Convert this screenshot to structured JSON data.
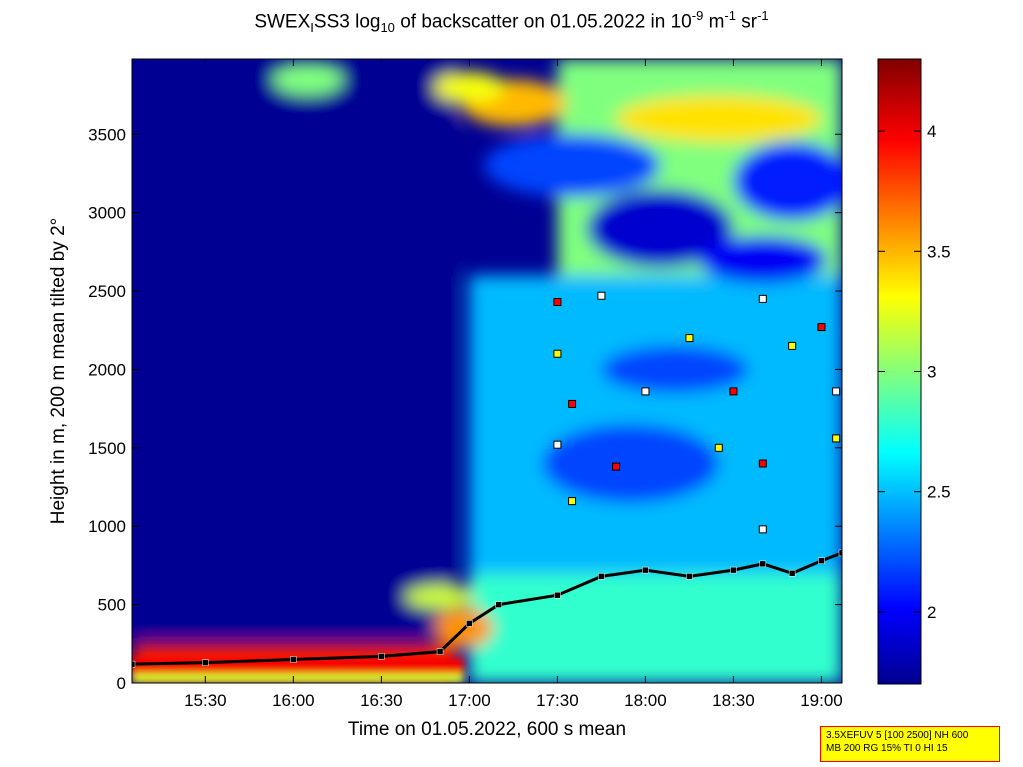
{
  "title_parts": {
    "pre": "SWEX",
    "sub_i": "I",
    "mid": "SS3 log",
    "sub_10": "10",
    "mid2": " of backscatter on 01.05.2022 in 10",
    "sup_9": "-9",
    "unit_m": " m",
    "sup_m": "-1",
    "unit_sr": " sr",
    "sup_sr": "-1"
  },
  "chart_data": {
    "type": "heatmap",
    "xlabel": "Time on 01.05.2022, 600 s mean",
    "ylabel": "Height in m, 200 m mean tilted by 2°",
    "x_range": [
      "15:05",
      "19:07"
    ],
    "x_ticks": [
      "15:30",
      "16:00",
      "16:30",
      "17:00",
      "17:30",
      "18:00",
      "18:30",
      "19:00"
    ],
    "y_range": [
      0,
      3980
    ],
    "y_ticks": [
      0,
      500,
      1000,
      1500,
      2000,
      2500,
      3000,
      3500
    ],
    "colorbar": {
      "range": [
        1.7,
        4.3
      ],
      "ticks": [
        "2",
        "2.5",
        "3",
        "3.5",
        "4"
      ],
      "colormap": "jet"
    },
    "regions": [
      {
        "description": "low backscatter, clear air aloft",
        "t_start": "15:05",
        "t_end": "16:55",
        "h_from": 300,
        "h_to": 3980,
        "value": 1.75
      },
      {
        "description": "surface aerosol layer",
        "t_start": "15:05",
        "t_end": "16:55",
        "h_from": 0,
        "h_to": 250,
        "value": 3.9
      },
      {
        "description": "boundary layer after 17:00",
        "t_start": "17:00",
        "t_end": "19:07",
        "h_from": 0,
        "h_to": 700,
        "value": 2.8
      },
      {
        "description": "residual/aloft aerosol",
        "t_start": "17:00",
        "t_end": "19:07",
        "h_from": 700,
        "h_to": 2600,
        "value": 2.5
      },
      {
        "description": "elevated clouds",
        "t_start": "17:30",
        "t_end": "19:07",
        "h_from": 2600,
        "h_to": 3980,
        "value": 3.0
      }
    ],
    "mixing_layer_height": [
      {
        "t": "15:05",
        "h": 120
      },
      {
        "t": "15:30",
        "h": 130
      },
      {
        "t": "16:00",
        "h": 150
      },
      {
        "t": "16:30",
        "h": 170
      },
      {
        "t": "16:50",
        "h": 200
      },
      {
        "t": "17:00",
        "h": 380
      },
      {
        "t": "17:10",
        "h": 500
      },
      {
        "t": "17:30",
        "h": 560
      },
      {
        "t": "17:45",
        "h": 680
      },
      {
        "t": "18:00",
        "h": 720
      },
      {
        "t": "18:15",
        "h": 680
      },
      {
        "t": "18:30",
        "h": 720
      },
      {
        "t": "18:40",
        "h": 760
      },
      {
        "t": "18:50",
        "h": 700
      },
      {
        "t": "19:00",
        "h": 780
      },
      {
        "t": "19:07",
        "h": 830
      }
    ],
    "cloud_layer_markers": [
      {
        "t": "17:30",
        "h": 2430
      },
      {
        "t": "17:45",
        "h": 2470
      },
      {
        "t": "17:30",
        "h": 2100
      },
      {
        "t": "17:35",
        "h": 1780
      },
      {
        "t": "17:30",
        "h": 1520
      },
      {
        "t": "17:35",
        "h": 1160
      },
      {
        "t": "17:50",
        "h": 1380
      },
      {
        "t": "18:00",
        "h": 1860
      },
      {
        "t": "18:15",
        "h": 2200
      },
      {
        "t": "18:30",
        "h": 1860
      },
      {
        "t": "18:40",
        "h": 2450
      },
      {
        "t": "18:50",
        "h": 2150
      },
      {
        "t": "19:00",
        "h": 2270
      },
      {
        "t": "19:05",
        "h": 1860
      },
      {
        "t": "18:25",
        "h": 1500
      },
      {
        "t": "18:40",
        "h": 1400
      },
      {
        "t": "18:40",
        "h": 980
      },
      {
        "t": "19:05",
        "h": 1560
      }
    ]
  },
  "infobox": {
    "line1": "3.5XEFUV 5 [100 2500] NH 600",
    "line2": "MB 200 RG 15% TI 0 HI 15"
  }
}
